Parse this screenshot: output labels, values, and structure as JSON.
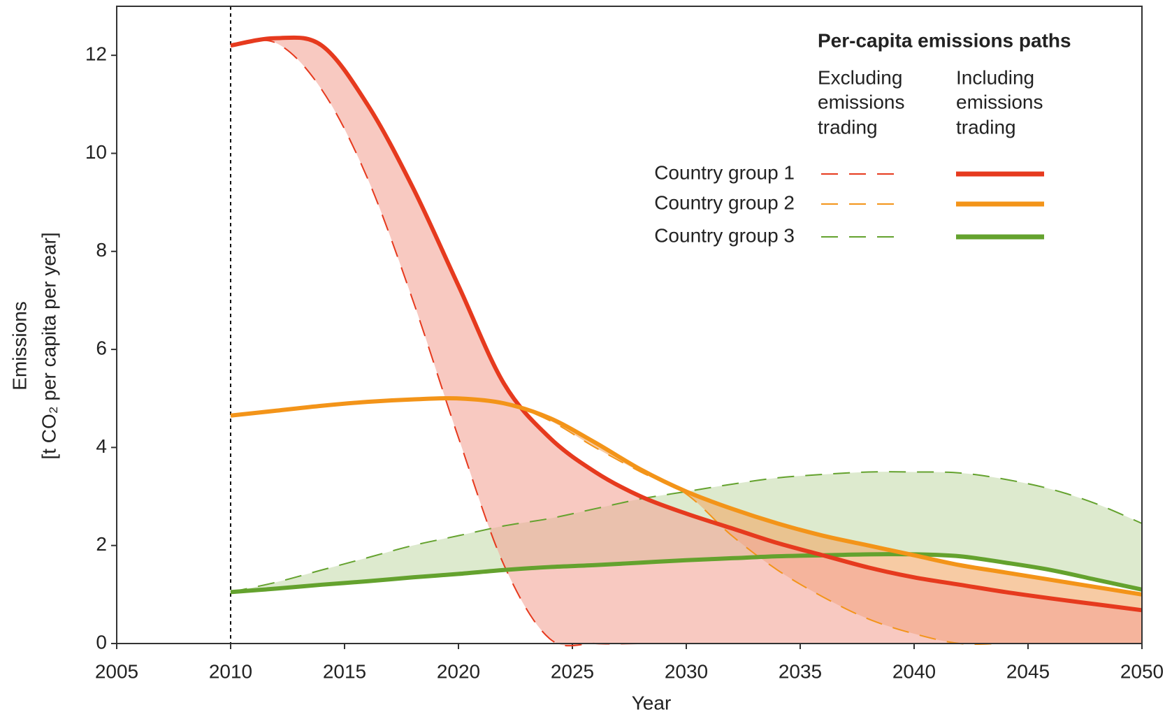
{
  "chart_data": {
    "type": "line",
    "xlabel": "Year",
    "ylabel": [
      "Emissions",
      "[t CO₂ per capita per year]"
    ],
    "xlim": [
      2005,
      2050
    ],
    "ylim": [
      0,
      13
    ],
    "xticks": [
      2005,
      2010,
      2015,
      2020,
      2025,
      2030,
      2035,
      2040,
      2045,
      2050
    ],
    "yticks": [
      0,
      2,
      4,
      6,
      8,
      10,
      12
    ],
    "marker_x": 2010,
    "legend": {
      "title": "Per-capita emissions paths",
      "excluding_header": [
        "Excluding",
        "emissions",
        "trading"
      ],
      "including_header": [
        "Including",
        "emissions",
        "trading"
      ]
    },
    "x": [
      2010,
      2012,
      2014,
      2016,
      2018,
      2020,
      2022,
      2024,
      2026,
      2028,
      2030,
      2032,
      2034,
      2036,
      2038,
      2040,
      2042,
      2044,
      2046,
      2048,
      2050
    ],
    "groups": [
      {
        "name": "Country group 1",
        "color": "#e63a1e",
        "fill": "#f4a597",
        "excluding": [
          12.2,
          12.25,
          11.3,
          9.5,
          7.0,
          4.2,
          1.6,
          0.1,
          0,
          0,
          0,
          0,
          0,
          0,
          0,
          0,
          0,
          0,
          0,
          0,
          0
        ],
        "including": [
          12.2,
          12.35,
          12.2,
          11.0,
          9.3,
          7.3,
          5.3,
          4.2,
          3.5,
          3.0,
          2.65,
          2.35,
          2.05,
          1.8,
          1.55,
          1.35,
          1.2,
          1.05,
          0.92,
          0.8,
          0.68
        ]
      },
      {
        "name": "Country group 2",
        "color": "#f39419",
        "fill": "#f2a868",
        "excluding": [
          4.65,
          4.75,
          4.85,
          4.93,
          4.98,
          5.0,
          4.9,
          4.55,
          4.0,
          3.5,
          3.05,
          2.2,
          1.5,
          0.95,
          0.5,
          0.2,
          0,
          0,
          0,
          0,
          0
        ],
        "including": [
          4.65,
          4.75,
          4.85,
          4.93,
          4.98,
          5.0,
          4.9,
          4.6,
          4.1,
          3.55,
          3.1,
          2.75,
          2.45,
          2.2,
          2.0,
          1.8,
          1.6,
          1.45,
          1.3,
          1.15,
          1.0
        ]
      },
      {
        "name": "Country group 3",
        "color": "#64a22e",
        "fill": "#c6dcae",
        "excluding": [
          1.05,
          1.25,
          1.5,
          1.75,
          2.0,
          2.2,
          2.4,
          2.55,
          2.75,
          2.95,
          3.1,
          3.25,
          3.38,
          3.45,
          3.5,
          3.5,
          3.48,
          3.35,
          3.15,
          2.85,
          2.45
        ],
        "including": [
          1.05,
          1.12,
          1.2,
          1.27,
          1.35,
          1.42,
          1.5,
          1.56,
          1.6,
          1.65,
          1.7,
          1.74,
          1.78,
          1.8,
          1.82,
          1.82,
          1.78,
          1.65,
          1.5,
          1.3,
          1.1
        ]
      }
    ]
  }
}
